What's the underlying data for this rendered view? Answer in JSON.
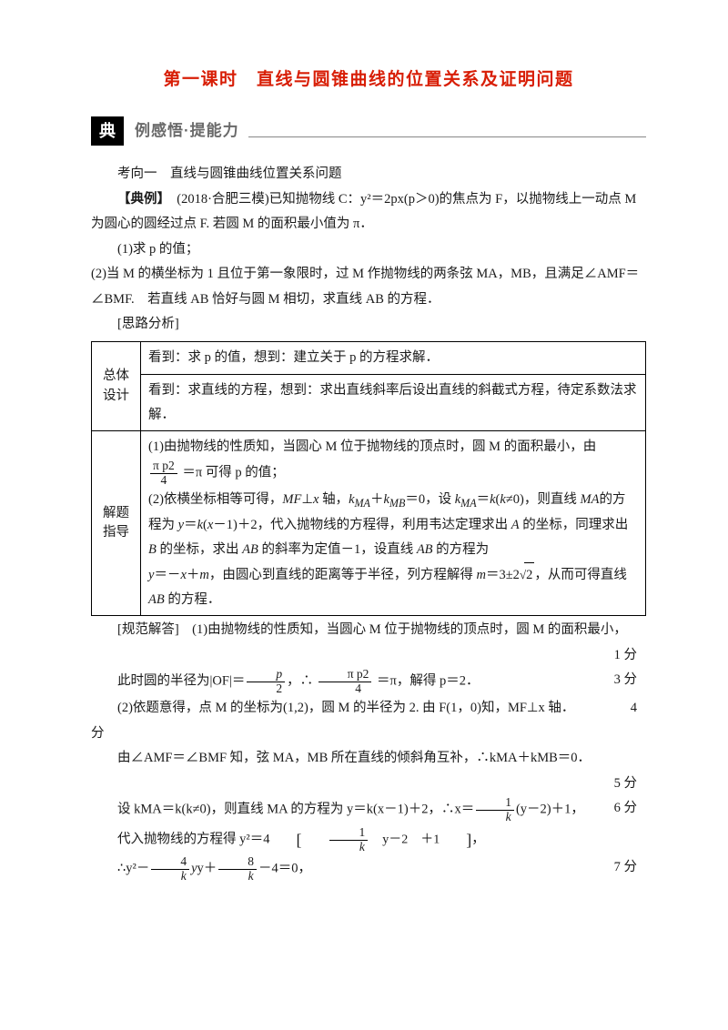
{
  "title": "第一课时　直线与圆锥曲线的位置关系及证明问题",
  "section": {
    "glyph": "典",
    "subtitle": "例感悟·提能力"
  },
  "kaoxiang": "考向一　直线与圆锥曲线位置关系问题",
  "dianli_label": "【典例】",
  "dianli_text": "　(2018·合肥三模)已知抛物线 C：y²＝2px(p＞0)的焦点为 F，以抛物线上一动点 M 为圆心的圆经过点 F. 若圆 M 的面积最小值为 π．",
  "q1": "(1)求 p 的值；",
  "q2": "(2)当 M 的横坐标为 1 且位于第一象限时，过 M 作抛物线的两条弦 MA，MB，且满足∠AMF＝∠BMF.　若直线 AB 恰好与圆 M 相切，求直线 AB 的方程．",
  "silu": "[思路分析]",
  "table": {
    "r1_label": "总体\n设计",
    "r1a": "看到：求 p 的值，想到：建立关于 p 的方程求解．",
    "r1b": "看到：求直线的方程，想到：求出直线斜率后设出直线的斜截式方程，待定系数法求解．",
    "r2_label": "解题\n指导",
    "r2_a": "(1)由抛物线的性质知，当圆心 M 位于抛物线的顶点时，圆 M 的面积最小，由",
    "frac1_num": "π p2",
    "frac1_den": "4",
    "r2_a2": " ＝π 可得 p 的值；",
    "r2_b": "(2)依横坐标相等可得，MF⊥x 轴，kMA＋kMB＝0，设 kMA＝k(k≠0)，则直线 MA的方程为 y＝k(x－1)＋2，代入抛物线的方程得，利用韦达定理求出 A 的坐标，同理求出 B 的坐标，求出 AB 的斜率为定值－1，设直线 AB 的方程为 y＝－x＋m，由圆心到直线的距离等于半径，列方程解得 m＝3±2√2，从而可得直线 AB 的方程．",
    "r2_b_sqrt": "2"
  },
  "guifan": "[规范解答]　(1)由抛物线的性质知，当圆心 M 位于抛物线的顶点时，圆 M 的面积最小，",
  "s1": "1 分",
  "line_radius_a": "此时圆的半径为|OF|＝",
  "frac_p2_num": "p",
  "frac_p2_den": "2",
  "line_radius_b": "，∴ ",
  "frac_pp_num": "π p2",
  "frac_pp_den": "4",
  "line_radius_c": " ＝π，解得 p＝2．",
  "s3": "3 分",
  "line4": "(2)依题意得，点 M 的坐标为(1,2)，圆 M 的半径为 2. 由 F(1，0)知，MF⊥x 轴．",
  "s4": "4",
  "fen": "分",
  "line5": "由∠AMF＝∠BMF 知，弦 MA，MB 所在直线的倾斜角互补，∴kMA＋kMB＝0．",
  "s5": "5 分",
  "line6a": "设 kMA＝k(k≠0)，则直线 MA 的方程为 y＝k(x－1)＋2，∴x＝",
  "frac_1k_num": "1",
  "frac_1k_den": "k",
  "line6b": "(y－2)＋1，",
  "s6": "6 分",
  "line7": "代入抛物线的方程得 y²＝4",
  "bracket_inner_a": "　y－2　＋1",
  "line8a": "∴y²－",
  "frac_4k_num": "4",
  "frac_4k_den": "k",
  "line8b": "y＋",
  "frac_8k_num": "8",
  "frac_8k_den": "k",
  "line8c": "－4＝0，",
  "s7": "7 分"
}
